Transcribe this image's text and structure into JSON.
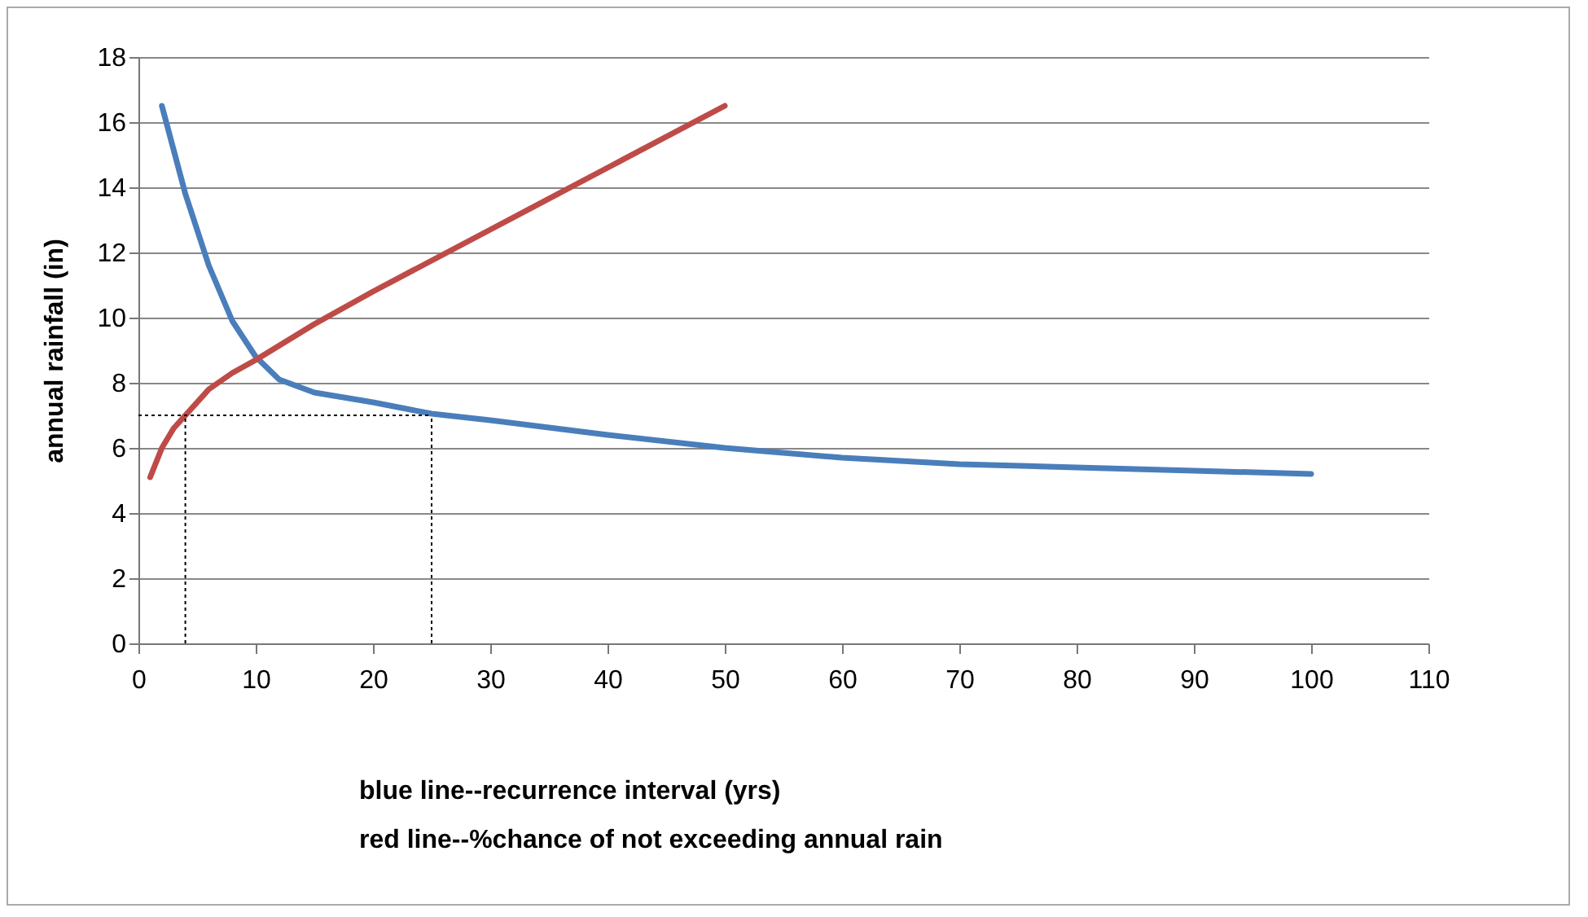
{
  "chart_data": {
    "type": "line",
    "xlabel": "blue line--recurrence interval (yrs)\nred line--%chance of not exceeding annual rain",
    "ylabel": "annual rainfall (in)",
    "series": [
      {
        "color": "#4a7ebb",
        "x": [
          2,
          4,
          6,
          8,
          10,
          12,
          15,
          20,
          25,
          30,
          40,
          50,
          60,
          70,
          80,
          90,
          100
        ],
        "values": [
          16.5,
          13.8,
          11.6,
          9.9,
          8.8,
          8.1,
          7.7,
          7.4,
          7.05,
          6.85,
          6.4,
          6.0,
          5.7,
          5.5,
          5.4,
          5.3,
          5.2
        ]
      },
      {
        "color": "#be4b48",
        "x": [
          1,
          2,
          3,
          4,
          6,
          8,
          10,
          15,
          20,
          30,
          40,
          50
        ],
        "values": [
          5.1,
          6.0,
          6.6,
          7.0,
          7.8,
          8.3,
          8.7,
          9.8,
          10.8,
          12.7,
          14.6,
          16.5
        ]
      }
    ],
    "xlim": [
      0,
      110
    ],
    "xticks": [
      0,
      10,
      20,
      30,
      40,
      50,
      60,
      70,
      80,
      90,
      100,
      110
    ],
    "ylim": [
      0,
      18
    ],
    "yticks": [
      0,
      2,
      4,
      6,
      8,
      10,
      12,
      14,
      16,
      18
    ],
    "grid": "y",
    "line_style": "solid",
    "marker": "none",
    "ref_lines": [
      {
        "axis": "y",
        "value": 7,
        "line_style": "dotted",
        "color": "#000000"
      },
      {
        "axis": "x",
        "value": 4,
        "line_style": "dotted",
        "color": "#000000"
      },
      {
        "axis": "x",
        "value": 25,
        "line_style": "dotted",
        "color": "#000000"
      }
    ]
  }
}
